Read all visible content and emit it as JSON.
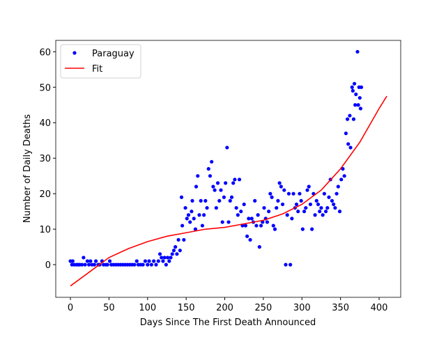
{
  "chart_data": {
    "type": "scatter",
    "xlabel": "Days Since The First Death Announced",
    "ylabel": "Number of Daily Deaths",
    "xlim": [
      -19,
      428
    ],
    "ylim": [
      -9.2,
      63.2
    ],
    "xticks": [
      0,
      50,
      100,
      150,
      200,
      250,
      300,
      350,
      400
    ],
    "yticks": [
      0,
      10,
      20,
      30,
      40,
      50,
      60
    ],
    "legend": "upper left",
    "series": [
      {
        "name": "Paraguay",
        "color": "#0000ff",
        "style": "points",
        "x": [
          0,
          2,
          3,
          5,
          8,
          10,
          12,
          15,
          17,
          19,
          22,
          24,
          26,
          28,
          31,
          33,
          36,
          38,
          41,
          43,
          46,
          48,
          51,
          53,
          56,
          59,
          62,
          65,
          68,
          71,
          74,
          77,
          80,
          83,
          86,
          88,
          91,
          94,
          97,
          100,
          102,
          105,
          108,
          111,
          114,
          116,
          118,
          120,
          122,
          124,
          126,
          128,
          130,
          132,
          134,
          136,
          138,
          140,
          142,
          144,
          145,
          147,
          149,
          151,
          153,
          155,
          157,
          158,
          160,
          162,
          163,
          165,
          167,
          169,
          171,
          173,
          175,
          177,
          179,
          181,
          183,
          185,
          187,
          189,
          191,
          193,
          195,
          197,
          199,
          201,
          203,
          205,
          207,
          209,
          211,
          213,
          215,
          217,
          219,
          221,
          223,
          225,
          227,
          229,
          231,
          233,
          235,
          237,
          239,
          241,
          243,
          245,
          247,
          249,
          251,
          253,
          255,
          257,
          259,
          261,
          263,
          265,
          267,
          269,
          271,
          273,
          275,
          277,
          279,
          281,
          283,
          285,
          287,
          289,
          291,
          293,
          295,
          297,
          299,
          301,
          303,
          305,
          307,
          309,
          311,
          313,
          315,
          317,
          319,
          321,
          323,
          325,
          327,
          329,
          331,
          333,
          335,
          337,
          339,
          341,
          343,
          345,
          347,
          349,
          351,
          353,
          355,
          357,
          359,
          360,
          362,
          363,
          365,
          366,
          367,
          368,
          369,
          370,
          372,
          373,
          374,
          375,
          376,
          377
        ],
        "values": [
          1,
          0,
          1,
          0,
          0,
          0,
          0,
          0,
          2,
          0,
          1,
          0,
          1,
          0,
          0,
          1,
          0,
          0,
          1,
          0,
          0,
          0,
          1,
          0,
          0,
          0,
          0,
          0,
          0,
          0,
          0,
          0,
          0,
          0,
          1,
          0,
          0,
          0,
          1,
          0,
          1,
          0,
          1,
          0,
          1,
          3,
          2,
          1,
          2,
          0,
          2,
          1,
          2,
          3,
          4,
          5,
          3,
          7,
          4,
          19,
          11,
          7,
          16,
          13,
          14,
          12,
          15,
          18,
          13,
          10,
          22,
          25,
          14,
          18,
          11,
          14,
          18,
          16,
          27,
          25,
          29,
          22,
          21,
          16,
          23,
          18,
          21,
          12,
          19,
          23,
          33,
          12,
          18,
          19,
          23,
          24,
          16,
          14,
          24,
          15,
          11,
          17,
          11,
          8,
          13,
          7,
          13,
          12,
          18,
          11,
          14,
          5,
          11,
          12,
          16,
          13,
          12,
          15,
          20,
          19,
          11,
          10,
          16,
          18,
          23,
          22,
          17,
          21,
          0,
          14,
          20,
          0,
          13,
          20,
          16,
          17,
          15,
          20,
          18,
          10,
          15,
          16,
          21,
          22,
          17,
          10,
          20,
          14,
          18,
          17,
          15,
          16,
          14,
          20,
          15,
          16,
          19,
          24,
          18,
          17,
          16,
          20,
          22,
          15,
          24,
          27,
          25,
          37,
          41,
          34,
          42,
          33,
          50,
          49,
          41,
          51,
          45,
          48,
          60,
          45,
          50,
          47,
          44,
          50
        ]
      },
      {
        "name": "Fit",
        "color": "#ff0000",
        "style": "line",
        "x": [
          0,
          25,
          50,
          75,
          100,
          125,
          150,
          175,
          200,
          225,
          250,
          275,
          300,
          325,
          350,
          375,
          400,
          410
        ],
        "values": [
          -6,
          -2,
          2,
          4.5,
          6.5,
          8,
          9,
          10,
          10.5,
          11.5,
          12.5,
          14.3,
          17,
          21,
          27,
          34.5,
          44,
          47.5
        ]
      }
    ]
  }
}
